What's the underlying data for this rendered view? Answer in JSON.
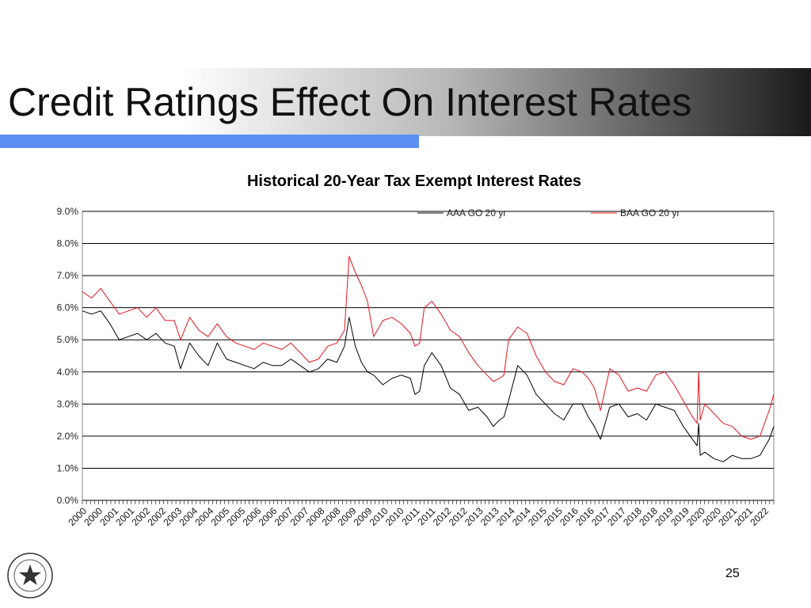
{
  "slide": {
    "title": "Credit Ratings Effect On Interest Rates",
    "page_number": "25"
  },
  "chart_data": {
    "type": "line",
    "title": "Historical 20-Year Tax Exempt Interest Rates",
    "xlabel": "",
    "ylabel": "",
    "ylim": [
      0,
      9
    ],
    "y_ticks": [
      "0.0%",
      "1.0%",
      "2.0%",
      "3.0%",
      "4.0%",
      "5.0%",
      "6.0%",
      "7.0%",
      "8.0%",
      "9.0%"
    ],
    "x_range": [
      2000.0,
      2022.55
    ],
    "x_tick_labels": [
      "2000",
      "2000",
      "2001",
      "2001",
      "2002",
      "2002",
      "2003",
      "2004",
      "2004",
      "2005",
      "2005",
      "2006",
      "2006",
      "2007",
      "2007",
      "2008",
      "2008",
      "2009",
      "2009",
      "2010",
      "2010",
      "2011",
      "2011",
      "2012",
      "2012",
      "2013",
      "2013",
      "2014",
      "2014",
      "2015",
      "2015",
      "2016",
      "2016",
      "2017",
      "2017",
      "2018",
      "2018",
      "2019",
      "2019",
      "2020",
      "2020",
      "2021",
      "2021",
      "2022"
    ],
    "grid": "horizontal",
    "legend_position": "top-right",
    "series": [
      {
        "name": "AAA GO 20 yr",
        "color": "#000000",
        "x": [
          2000.0,
          2000.3,
          2000.6,
          2000.9,
          2001.2,
          2001.5,
          2001.8,
          2002.1,
          2002.4,
          2002.7,
          2003.0,
          2003.2,
          2003.5,
          2003.8,
          2004.1,
          2004.4,
          2004.7,
          2005.0,
          2005.3,
          2005.6,
          2005.9,
          2006.2,
          2006.5,
          2006.8,
          2007.1,
          2007.4,
          2007.7,
          2008.0,
          2008.3,
          2008.55,
          2008.7,
          2008.9,
          2009.1,
          2009.3,
          2009.5,
          2009.8,
          2010.1,
          2010.4,
          2010.7,
          2010.85,
          2011.0,
          2011.15,
          2011.4,
          2011.7,
          2012.0,
          2012.3,
          2012.6,
          2012.9,
          2013.2,
          2013.4,
          2013.6,
          2013.75,
          2013.9,
          2014.2,
          2014.5,
          2014.8,
          2015.1,
          2015.4,
          2015.7,
          2016.0,
          2016.3,
          2016.5,
          2016.7,
          2016.9,
          2017.2,
          2017.5,
          2017.8,
          2018.1,
          2018.4,
          2018.7,
          2019.0,
          2019.3,
          2019.6,
          2019.9,
          2020.05,
          2020.1,
          2020.15,
          2020.3,
          2020.6,
          2020.9,
          2021.2,
          2021.5,
          2021.8,
          2022.1,
          2022.4,
          2022.55
        ],
        "values": [
          5.9,
          5.8,
          5.9,
          5.5,
          5.0,
          5.1,
          5.2,
          5.0,
          5.2,
          4.9,
          4.8,
          4.1,
          4.9,
          4.5,
          4.2,
          4.9,
          4.4,
          4.3,
          4.2,
          4.1,
          4.3,
          4.2,
          4.2,
          4.4,
          4.2,
          4.0,
          4.1,
          4.4,
          4.3,
          4.8,
          5.7,
          4.8,
          4.3,
          4.0,
          3.9,
          3.6,
          3.8,
          3.9,
          3.8,
          3.3,
          3.4,
          4.2,
          4.6,
          4.2,
          3.5,
          3.3,
          2.8,
          2.9,
          2.6,
          2.3,
          2.5,
          2.6,
          3.1,
          4.2,
          3.9,
          3.3,
          3.0,
          2.7,
          2.5,
          3.0,
          3.0,
          2.6,
          2.3,
          1.9,
          2.9,
          3.0,
          2.6,
          2.7,
          2.5,
          3.0,
          2.9,
          2.8,
          2.3,
          1.9,
          1.7,
          2.4,
          1.4,
          1.5,
          1.3,
          1.2,
          1.4,
          1.3,
          1.3,
          1.4,
          1.9,
          2.3
        ]
      },
      {
        "name": "BAA GO 20 yr",
        "color": "#e8141e",
        "x": [
          2000.0,
          2000.3,
          2000.6,
          2000.9,
          2001.2,
          2001.5,
          2001.8,
          2002.1,
          2002.4,
          2002.7,
          2003.0,
          2003.2,
          2003.5,
          2003.8,
          2004.1,
          2004.4,
          2004.7,
          2005.0,
          2005.3,
          2005.6,
          2005.9,
          2006.2,
          2006.5,
          2006.8,
          2007.1,
          2007.4,
          2007.7,
          2008.0,
          2008.3,
          2008.55,
          2008.7,
          2008.9,
          2009.1,
          2009.3,
          2009.5,
          2009.8,
          2010.1,
          2010.4,
          2010.7,
          2010.85,
          2011.0,
          2011.15,
          2011.4,
          2011.7,
          2012.0,
          2012.3,
          2012.6,
          2012.9,
          2013.2,
          2013.4,
          2013.6,
          2013.75,
          2013.9,
          2014.2,
          2014.5,
          2014.8,
          2015.1,
          2015.4,
          2015.7,
          2016.0,
          2016.3,
          2016.5,
          2016.7,
          2016.9,
          2017.2,
          2017.5,
          2017.8,
          2018.1,
          2018.4,
          2018.7,
          2019.0,
          2019.3,
          2019.6,
          2019.9,
          2020.05,
          2020.1,
          2020.15,
          2020.3,
          2020.6,
          2020.9,
          2021.2,
          2021.5,
          2021.8,
          2022.1,
          2022.4,
          2022.55
        ],
        "values": [
          6.5,
          6.3,
          6.6,
          6.2,
          5.8,
          5.9,
          6.0,
          5.7,
          6.0,
          5.6,
          5.6,
          5.0,
          5.7,
          5.3,
          5.1,
          5.5,
          5.1,
          4.9,
          4.8,
          4.7,
          4.9,
          4.8,
          4.7,
          4.9,
          4.6,
          4.3,
          4.4,
          4.8,
          4.9,
          5.3,
          7.6,
          7.1,
          6.7,
          6.2,
          5.1,
          5.6,
          5.7,
          5.5,
          5.2,
          4.8,
          4.9,
          6.0,
          6.2,
          5.8,
          5.3,
          5.1,
          4.6,
          4.2,
          3.9,
          3.7,
          3.8,
          3.9,
          5.0,
          5.4,
          5.2,
          4.5,
          4.0,
          3.7,
          3.6,
          4.1,
          4.0,
          3.8,
          3.5,
          2.8,
          4.1,
          3.9,
          3.4,
          3.5,
          3.4,
          3.9,
          4.0,
          3.6,
          3.1,
          2.6,
          2.4,
          4.0,
          2.5,
          3.0,
          2.7,
          2.4,
          2.3,
          2.0,
          1.9,
          2.0,
          2.8,
          3.3
        ]
      }
    ]
  }
}
